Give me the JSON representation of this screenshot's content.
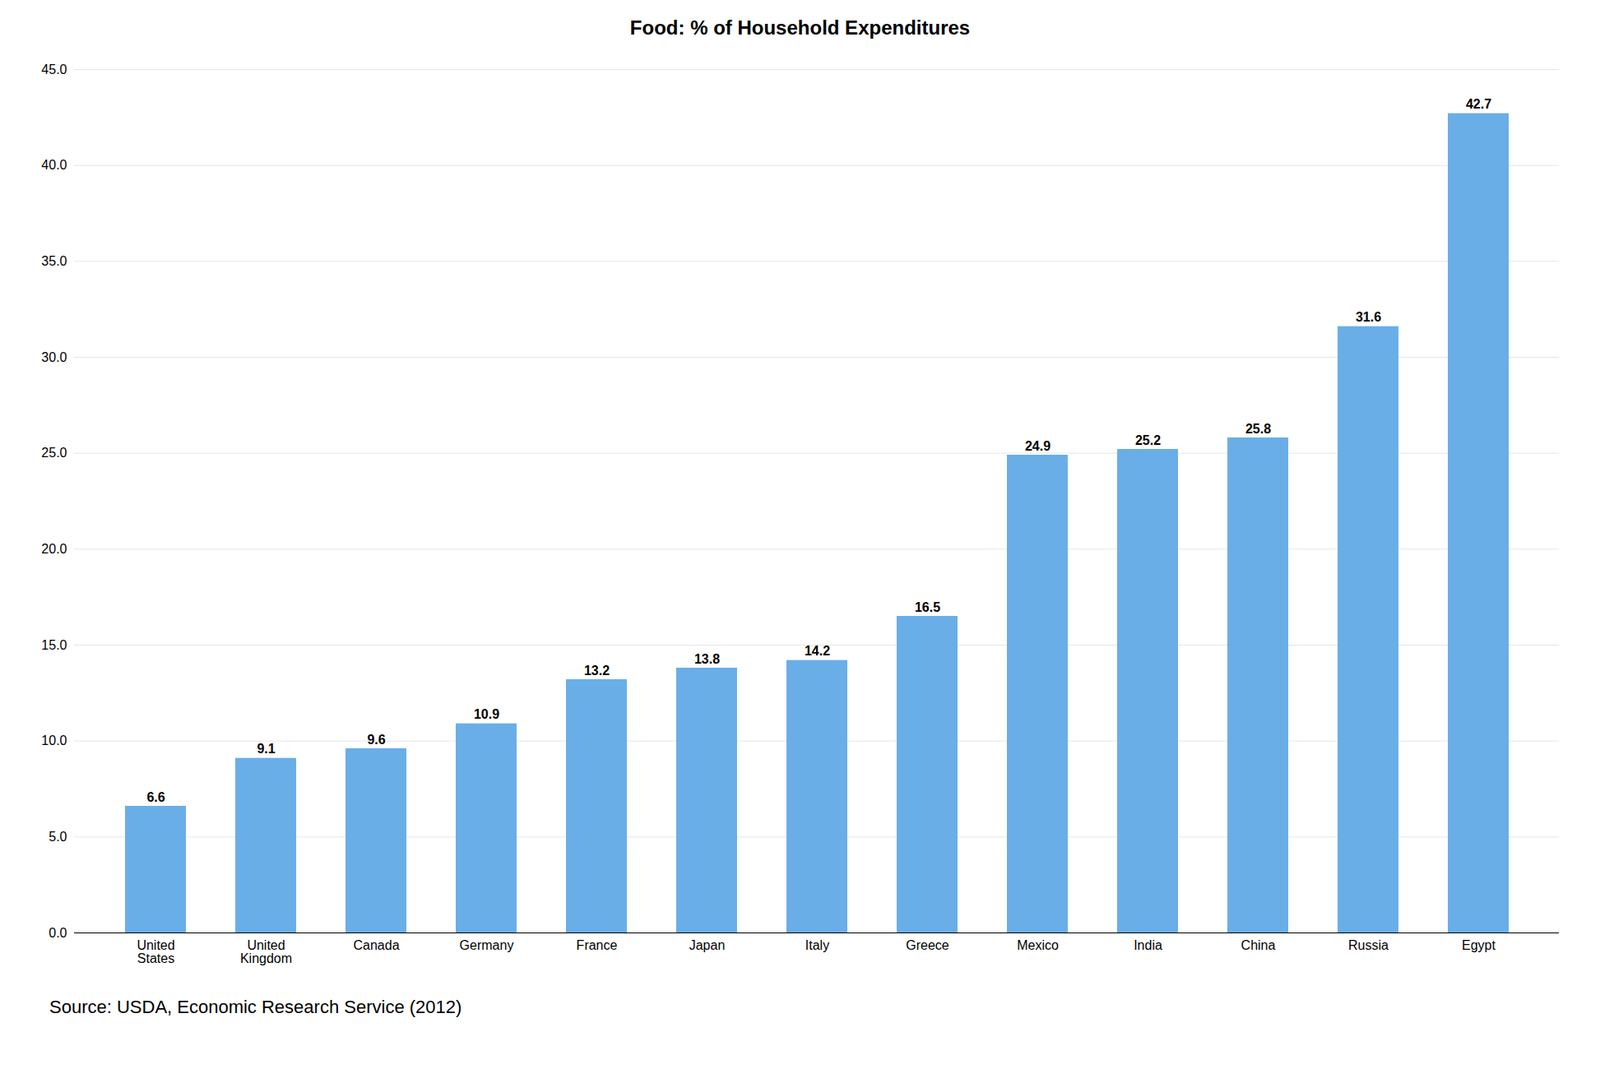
{
  "chart_data": {
    "type": "bar",
    "title": "Food: % of Household Expenditures",
    "categories": [
      "United\nStates",
      "United\nKingdom",
      "Canada",
      "Germany",
      "France",
      "Japan",
      "Italy",
      "Greece",
      "Mexico",
      "India",
      "China",
      "Russia",
      "Egypt"
    ],
    "values": [
      6.6,
      9.1,
      9.6,
      10.9,
      13.2,
      13.8,
      14.2,
      16.5,
      24.9,
      25.2,
      25.8,
      31.6,
      42.7
    ],
    "color": "#6aaee8",
    "ylim": [
      0,
      45.0
    ],
    "yticks": [
      {
        "value": 0,
        "label": "0.0"
      },
      {
        "value": 5,
        "label": "5.0"
      },
      {
        "value": 10,
        "label": "10.0"
      },
      {
        "value": 15,
        "label": "15.0"
      },
      {
        "value": 20,
        "label": "20.0"
      },
      {
        "value": 25,
        "label": "25.0"
      },
      {
        "value": 30,
        "label": "30.0"
      },
      {
        "value": 35,
        "label": "35.0"
      },
      {
        "value": 40,
        "label": "40.0"
      },
      {
        "value": 45,
        "label": "45.0"
      }
    ],
    "grid": true,
    "data_labels": true,
    "source": "Source: USDA, Economic Research Service (2012)"
  }
}
